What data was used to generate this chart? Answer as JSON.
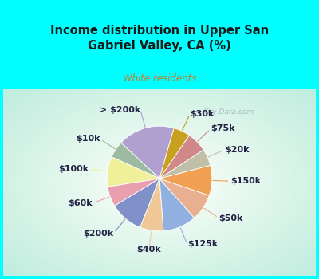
{
  "title": "Income distribution in Upper San\nGabriel Valley, CA (%)",
  "subtitle": "White residents",
  "title_color": "#1a1a1a",
  "subtitle_color": "#cc7722",
  "bg_cyan": "#00ffff",
  "watermark": "City-Data.com",
  "labels": [
    "> $200k",
    "$10k",
    "$100k",
    "$60k",
    "$200k",
    "$40k",
    "$125k",
    "$50k",
    "$150k",
    "$20k",
    "$75k",
    "$30k"
  ],
  "values": [
    17,
    5,
    9,
    6,
    10,
    7,
    10,
    8,
    9,
    5,
    6,
    5
  ],
  "colors": [
    "#b0a0d0",
    "#9dbba0",
    "#f0f09a",
    "#e8a0b0",
    "#8090c8",
    "#f0c898",
    "#90b0e0",
    "#e8b090",
    "#f0a050",
    "#c0c0a8",
    "#d08888",
    "#c8a020"
  ],
  "startangle": 74,
  "label_fontsize": 8.0,
  "label_color": "#222244",
  "line_lw": 0.8
}
